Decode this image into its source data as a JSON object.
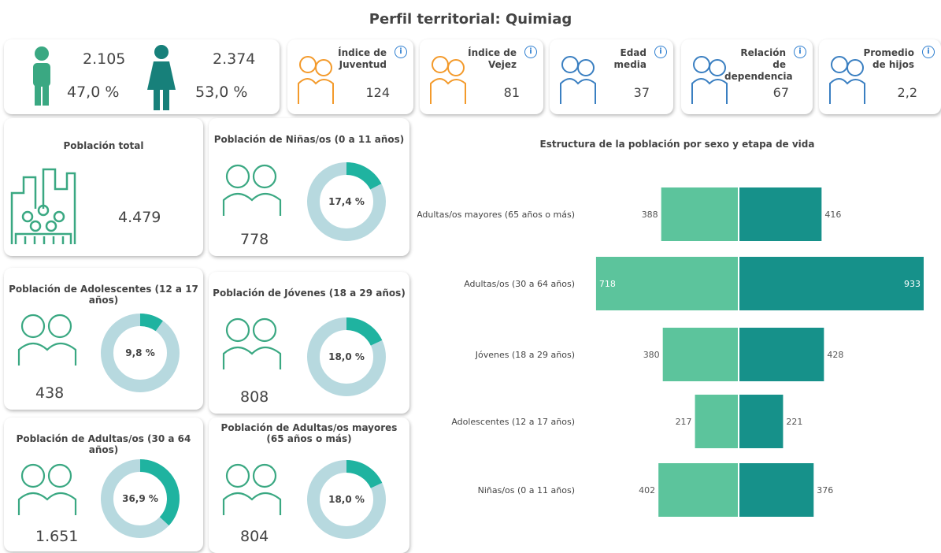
{
  "header": {
    "title": "Perfil territorial: Quimiag"
  },
  "sex": {
    "male": {
      "count": "2.105",
      "share": "47,0 %"
    },
    "female": {
      "count": "2.374",
      "share": "53,0 %"
    }
  },
  "indicators": [
    {
      "label": "Índice de Juventud",
      "value": "124"
    },
    {
      "label": "Índice de Vejez",
      "value": "81"
    },
    {
      "label": "Edad media",
      "value": "37"
    },
    {
      "label": "Relación de dependencia",
      "value": "67"
    },
    {
      "label": "Promedio de hijos",
      "value": "2,2"
    }
  ],
  "total": {
    "title": "Población total",
    "value": "4.479"
  },
  "groups": [
    {
      "title": "Población de Niñas/os (0 a 11 años)",
      "count": "778",
      "percent": 17.4,
      "percent_label": "17,4 %"
    },
    {
      "title": "Población de Adolescentes (12 a 17 años)",
      "count": "438",
      "percent": 9.8,
      "percent_label": "9,8 %"
    },
    {
      "title": "Población de Jóvenes (18 a 29 años)",
      "count": "808",
      "percent": 18.0,
      "percent_label": "18,0 %"
    },
    {
      "title": "Población de Adultas/os (30 a 64 años)",
      "count": "1.651",
      "percent": 36.9,
      "percent_label": "36,9 %"
    },
    {
      "title": "Población de Adultas/os mayores (65 años o más)",
      "count": "804",
      "percent": 18.0,
      "percent_label": "18,0 %"
    }
  ],
  "chart": {
    "type": "bar",
    "title": "Estructura de la población por sexo y etapa de vida",
    "categories": [
      "Adultas/os mayores (65 años o más)",
      "Adultas/os (30 a 64 años)",
      "Jóvenes (18 a 29 años)",
      "Adolescentes (12 a 17 años)",
      "Niñas/os (0 a 11 años)"
    ],
    "series": [
      {
        "color": "#5cc49c",
        "values": [
          388,
          718,
          380,
          217,
          402
        ]
      },
      {
        "color": "#16918a",
        "values": [
          416,
          933,
          428,
          221,
          376
        ]
      }
    ]
  }
}
